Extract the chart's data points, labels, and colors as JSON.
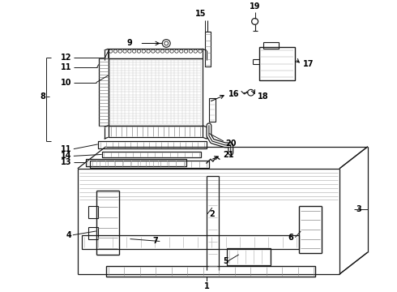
{
  "background_color": "#ffffff",
  "line_color": "#1a1a1a",
  "text_color": "#000000",
  "figsize": [
    4.9,
    3.6
  ],
  "dpi": 100
}
